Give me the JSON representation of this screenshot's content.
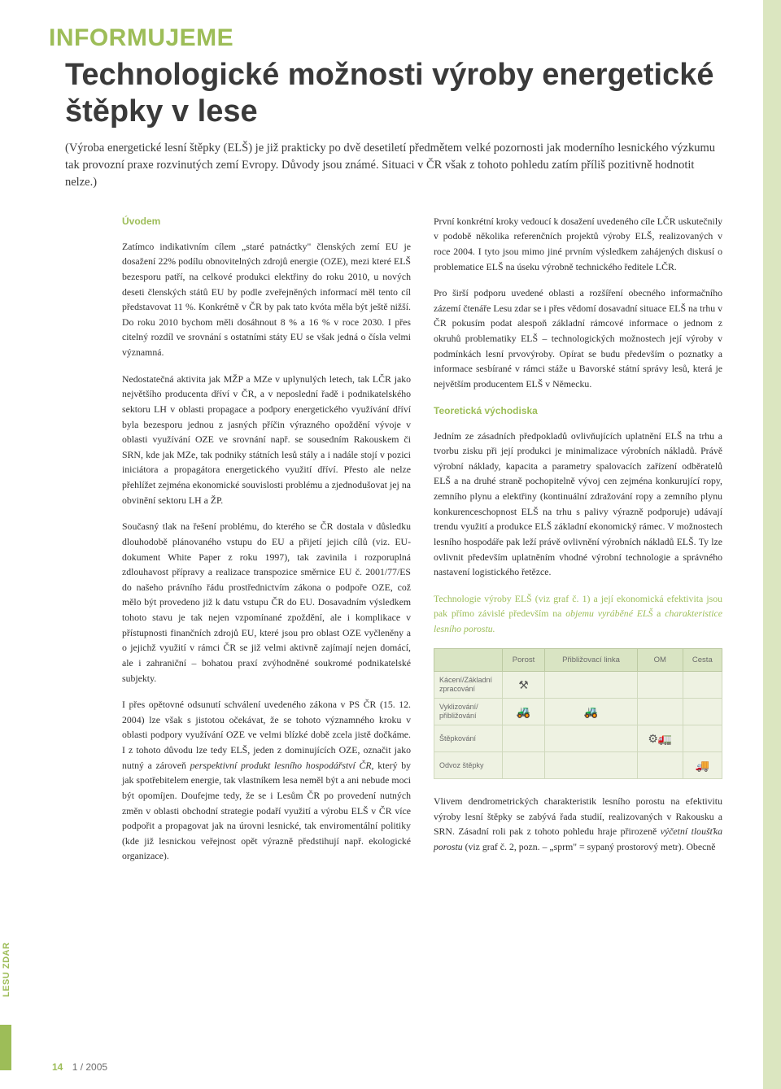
{
  "brand": {
    "side_label": "LESU ZDAR",
    "accent_color": "#9dbd58",
    "band_color": "#dbe6c0"
  },
  "section_header": "INFORMUJEME",
  "title": "Technologické možnosti výroby energetické štěpky v lese",
  "lede": "(Výroba energetické lesní štěpky (ELŠ) je již prakticky po dvě desetiletí předmětem velké pozornosti jak moderního lesnického výzkumu tak provozní praxe rozvinutých zemí Evropy. Důvody jsou známé. Situaci v ČR však z tohoto pohledu zatím příliš pozitivně hodnotit nelze.)",
  "col_left": {
    "h_intro": "Úvodem",
    "p1": "Zatímco indikativním cílem „staré patnáctky\" členských zemí EU je dosažení 22% podílu obnovitelných zdrojů energie (OZE), mezi které ELŠ bezesporu patří, na celkové produkci elektřiny do roku 2010, u nových deseti členských států EU by podle zveřejněných informací měl tento cíl představovat 11 %. Konkrétně v ČR by pak tato kvóta měla být ještě nižší. Do roku 2010 bychom měli dosáhnout 8 % a 16 % v roce 2030. I přes citelný rozdíl ve srovnání s ostatními státy EU se však jedná o čísla velmi významná.",
    "p2": "Nedostatečná aktivita jak MŽP a MZe v uplynulých letech, tak LČR jako největšího producenta dříví v ČR, a v neposlední řadě i podnikatelského sektoru LH v oblasti propagace a podpory energetického využívání dříví byla bezesporu jednou z jasných příčin výrazného opoždění vývoje v oblasti využívání OZE ve srovnání např. se sousedním Rakouskem či SRN, kde jak MZe, tak podniky státních lesů stály a i nadále stojí v pozici iniciátora a propagátora energetického využití dříví. Přesto ale nelze přehlížet zejména ekonomické souvislosti problému a zjednodušovat jej na obvinění sektoru LH a ŽP.",
    "p3": "Současný tlak na řešení problému, do kterého se ČR dostala v důsledku dlouhodobě plánovaného vstupu do EU a přijetí jejich cílů (viz. EU-dokument White Paper z roku 1997), tak zavinila i rozporuplná zdlouhavost přípravy a realizace transpozice směrnice EU č. 2001/77/ES do našeho právního řádu prostřednictvím zákona o podpoře OZE, což mělo být provedeno již k datu vstupu ČR do EU. Dosavadním výsledkem tohoto stavu je tak nejen vzpomínané zpoždění, ale i komplikace v přístupnosti finančních zdrojů EU, které jsou pro oblast OZE vyčleněny a o jejichž využití v rámci ČR se již velmi aktivně zajímají nejen domácí, ale i zahraniční – bohatou praxí zvýhodněné soukromé podnikatelské subjekty.",
    "p4a": "I přes opětovné odsunutí schválení uvedeného zákona v PS ČR (15. 12. 2004) lze však s jistotou očekávat, že se tohoto významného kroku v oblasti podpory využívání OZE ve velmi blízké době zcela jistě dočkáme. I z tohoto důvodu lze tedy ELŠ, jeden z dominujících OZE, označit jako nutný a zároveň ",
    "p4b_em": "perspektivní produkt lesního hospodářství ČR,",
    "p4c": " který by jak spotřebitelem energie, tak vlastníkem lesa neměl být a ani nebude moci být opomíjen. Doufejme tedy, že se i Lesům ČR po provedení nutných změn v oblasti obchodní strategie podaří využití a výrobu ELŠ v ČR více podpořit a propagovat jak na úrovni lesnické, tak enviromentální politiky (kde již lesnickou veřejnost opět výrazně předstihují např. ekologické organizace)."
  },
  "col_right": {
    "p1": "První konkrétní kroky vedoucí k dosažení uvedeného cíle LČR uskutečnily v podobě několika referenčních projektů výroby ELŠ, realizovaných v roce 2004. I tyto jsou mimo jiné prvním výsledkem zahájených diskusí o problematice ELŠ na úseku výrobně technického ředitele LČR.",
    "p2": "Pro širší podporu uvedené oblasti a rozšíření obecného informačního zázemí čtenáře Lesu zdar se i přes vědomí dosavadní situace ELŠ na trhu v ČR pokusím podat alespoň základní rámcové informace o jednom z okruhů problematiky ELŠ – technologických možnostech její výroby v podmínkách lesní prvovýroby. Opírat se budu především o poznatky a informace sesbírané v rámci stáže u Bavorské státní správy lesů, která je největším producentem ELŠ v Německu.",
    "h_theory": "Teoretická východiska",
    "p3": "Jedním ze zásadních předpokladů ovlivňujících uplatnění ELŠ na trhu a tvorbu zisku při její produkci je minimalizace výrobních nákladů. Právě výrobní náklady, kapacita a parametry spalovacích zařízení odběratelů ELŠ a na druhé straně pochopitelně vývoj cen zejména konkurující ropy, zemního plynu a elektřiny (kontinuální zdražování ropy a zemního plynu konkurenceschopnost ELŠ na trhu s palivy výrazně podporuje) udávají trendu využití a produkce ELŠ základní ekonomický rámec. V možnostech lesního hospodáře pak leží právě ovlivnění výrobních nákladů ELŠ. Ty lze ovlivnit především uplatněním vhodné výrobní technologie a správného nastavení logistického řetězce.",
    "highlight_p4a": "Technologie výroby ELŠ (viz graf č. 1) a její ekonomická efektivita jsou pak přímo závislé především na ",
    "highlight_p4b_em": "objemu vyráběné ELŠ",
    "highlight_p4c": " a ",
    "highlight_p4d_em": "charakteristice lesního porostu.",
    "p5a": "Vlivem dendrometrických charakteristik lesního porostu na efektivitu výroby lesní štěpky se zabývá řada studií, realizovaných v Rakousku a SRN. Zásadní roli pak z tohoto pohledu hraje přirozeně ",
    "p5b_em": "výčetní tloušťka porostu",
    "p5c": " (viz graf č. 2, pozn. – „sprm\" = sypaný prostorový metr). Obecně"
  },
  "proc_table": {
    "headers": [
      "",
      "Porost",
      "Přibližovací linka",
      "OM",
      "Cesta"
    ],
    "rows": [
      {
        "label": "Kácení/Základní zpracování",
        "icons": [
          "⚒",
          "",
          "",
          ""
        ]
      },
      {
        "label": "Vyklizování/ přibližování",
        "icons": [
          "🚜",
          "🚜",
          "",
          ""
        ]
      },
      {
        "label": "Štěpkování",
        "icons": [
          "",
          "",
          "⚙🚛",
          ""
        ]
      },
      {
        "label": "Odvoz štěpky",
        "icons": [
          "",
          "",
          "",
          "🚚"
        ]
      }
    ],
    "header_bg": "#d9e4c3",
    "cell_bg": "#eef2e2",
    "border_color": "#bcc9a2"
  },
  "footer": {
    "page": "14",
    "issue": "1 / 2005"
  }
}
